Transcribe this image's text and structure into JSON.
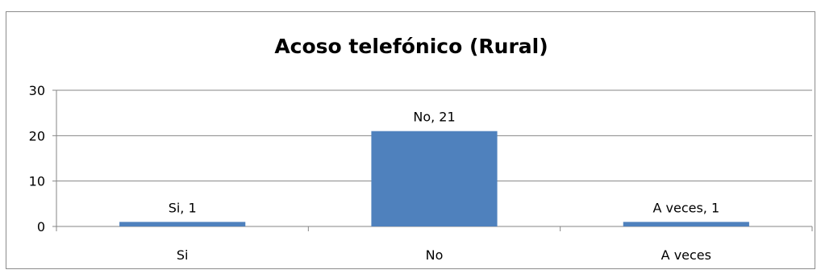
{
  "chart_data": {
    "type": "bar",
    "title": "Acoso telefónico (Rural)",
    "categories": [
      "Si",
      "No",
      "A veces"
    ],
    "values": [
      1,
      21,
      1
    ],
    "data_labels": [
      "Si, 1",
      "No, 21",
      "A veces, 1"
    ],
    "yticks": [
      "0",
      "10",
      "20",
      "30"
    ],
    "ylim": [
      0,
      30
    ],
    "grid": true,
    "legend": "none",
    "bar_color": "#4f81bd",
    "grid_color": "#868686"
  }
}
